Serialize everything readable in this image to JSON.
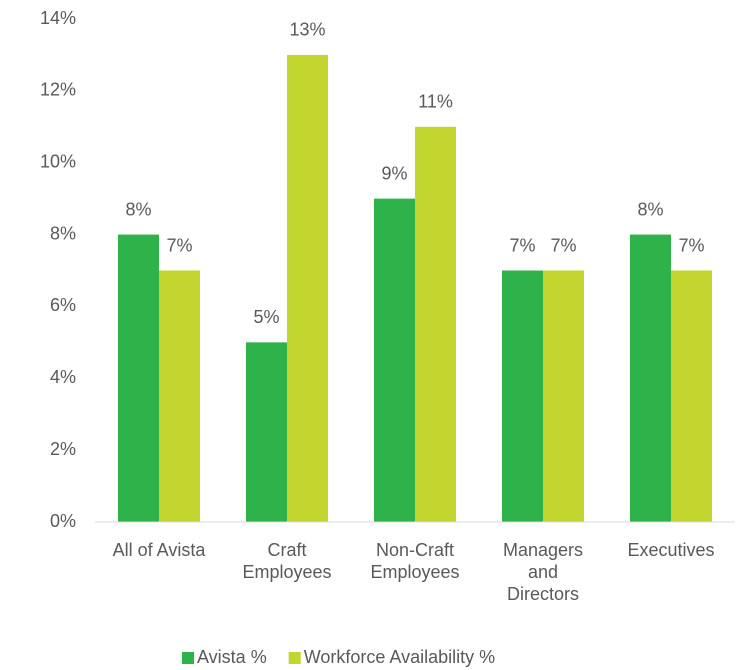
{
  "chart_data": {
    "type": "bar",
    "categories": [
      "All of Avista",
      "Craft Employees",
      "Non-Craft Employees",
      "Managers and Directors",
      "Executives"
    ],
    "series": [
      {
        "name": "Avista %",
        "color": "#2db34a",
        "values": [
          8,
          5,
          9,
          7,
          8
        ],
        "value_labels": [
          "8%",
          "5%",
          "9%",
          "7%",
          "8%"
        ]
      },
      {
        "name": "Workforce Availability %",
        "color": "#c2d62f",
        "values": [
          7,
          13,
          11,
          7,
          7
        ],
        "value_labels": [
          "7%",
          "13%",
          "11%",
          "7%",
          "7%"
        ]
      }
    ],
    "ylim": [
      0,
      14
    ],
    "yticks": [
      {
        "value": 0,
        "label": "0%"
      },
      {
        "value": 2,
        "label": "2%"
      },
      {
        "value": 4,
        "label": "4%"
      },
      {
        "value": 6,
        "label": "6%"
      },
      {
        "value": 8,
        "label": "8%"
      },
      {
        "value": 10,
        "label": "10%"
      },
      {
        "value": 12,
        "label": "12%"
      },
      {
        "value": 14,
        "label": "14%"
      }
    ],
    "grid": false,
    "legend": "bottom"
  }
}
